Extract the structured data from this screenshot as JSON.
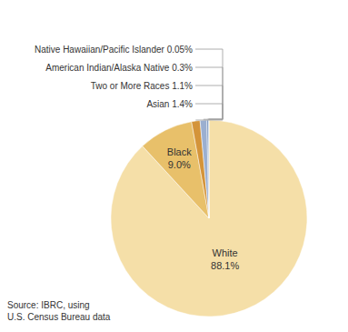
{
  "chart_data": {
    "type": "pie",
    "categories": [
      "White",
      "Black",
      "Asian",
      "Two or More Races",
      "American Indian/Alaska Native",
      "Native Hawaiian/Pacific Islander"
    ],
    "values": [
      88.1,
      9.0,
      1.4,
      1.1,
      0.3,
      0.05
    ],
    "colors": [
      "#f5dfa8",
      "#e8c06a",
      "#d4943a",
      "#9bafd0",
      "#7a96c0",
      "#6080b0"
    ],
    "data_labels": true,
    "value_labels": [
      "White\n88.1%",
      "Black\n9.0%",
      "Asian 1.4%",
      "Two or More Races 1.1%",
      "American Indian/Alaska Native 0.3%",
      "Native Hawaiian/Pacific Islander 0.05%"
    ],
    "annotations": [
      "Source: IBRC, using\nU.S. Census Bureau data"
    ]
  }
}
